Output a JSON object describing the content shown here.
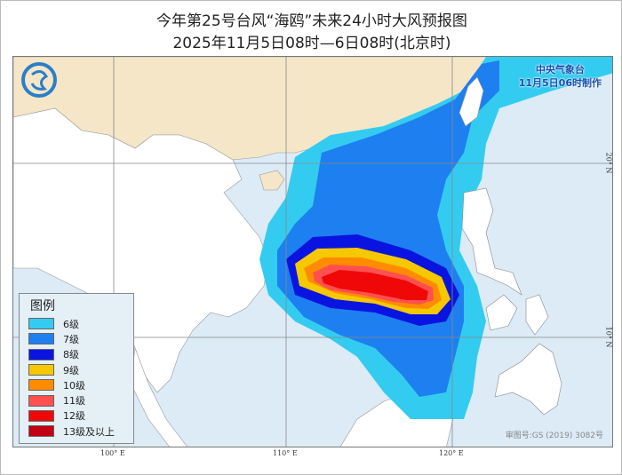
{
  "title": "今年第25号台风“海鸥”未来24小时大风预报图",
  "subtitle": "2025年11月5日08时—6日08时(北京时)",
  "agency": {
    "name": "中央气象台",
    "made": "11月5日06时制作"
  },
  "legend": {
    "title": "图例",
    "items": [
      {
        "label": "6级",
        "color": "#33ccf0"
      },
      {
        "label": "7级",
        "color": "#1e7ff0"
      },
      {
        "label": "8级",
        "color": "#0a14e0"
      },
      {
        "label": "9级",
        "color": "#f5c800"
      },
      {
        "label": "10级",
        "color": "#ff8c00"
      },
      {
        "label": "11级",
        "color": "#ff5050"
      },
      {
        "label": "12级",
        "color": "#f00808"
      },
      {
        "label": "13级及以上",
        "color": "#c00010"
      }
    ]
  },
  "axes": {
    "lon": [
      "100° E",
      "110° E",
      "120° E"
    ],
    "lat": [
      "20° N",
      "10° N"
    ]
  },
  "review_no": "审图号:GS (2019) 3082号",
  "colors": {
    "sea": "#dcebf6",
    "china": "#f5e6c8",
    "land": "#ffffff"
  }
}
